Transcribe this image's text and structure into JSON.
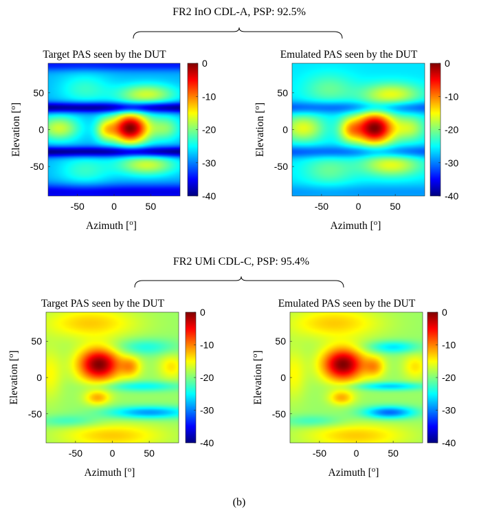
{
  "caption": "(b)",
  "chart_data": [
    {
      "type": "heatmap",
      "group_title": "FR2 InO CDL-A, PSP: 92.5%",
      "title": "Target PAS seen by the DUT",
      "xlabel": "Azimuth [",
      "ylabel": "Elevation [",
      "label_superscript": "o",
      "label_close": "]",
      "xlim": [
        -90,
        90
      ],
      "ylim": [
        -90,
        90
      ],
      "xticks": [
        "-50",
        "0",
        "50"
      ],
      "xtick_values": [
        -50,
        0,
        50
      ],
      "yticks": [
        "50",
        "0",
        "-50"
      ],
      "ytick_values": [
        50,
        0,
        -50
      ],
      "colorbar": {
        "range": [
          -40,
          0
        ],
        "ticks": [
          "0",
          "-10",
          "-20",
          "-30",
          "-40"
        ],
        "tick_values": [
          0,
          -10,
          -20,
          -30,
          -40
        ],
        "colormap": "jet"
      },
      "field": {
        "base": -28,
        "blobs": [
          {
            "az": 22,
            "el": 2,
            "saz": 18,
            "sel": 15,
            "amp": 28
          },
          {
            "az": -75,
            "el": 2,
            "saz": 20,
            "sel": 12,
            "amp": 11
          },
          {
            "az": -12,
            "el": 0,
            "saz": 10,
            "sel": 11,
            "amp": 10
          },
          {
            "az": 45,
            "el": 48,
            "saz": 28,
            "sel": 10,
            "amp": 11
          },
          {
            "az": 45,
            "el": -48,
            "saz": 28,
            "sel": 10,
            "amp": 11
          },
          {
            "az": 70,
            "el": 2,
            "saz": 15,
            "sel": 12,
            "amp": 8
          },
          {
            "az": -40,
            "el": 55,
            "saz": 25,
            "sel": 15,
            "amp": 5
          },
          {
            "az": -40,
            "el": -55,
            "saz": 25,
            "sel": 15,
            "amp": 5
          }
        ],
        "nulls": [
          {
            "el": 30,
            "w": 5,
            "depth": 12
          },
          {
            "el": -30,
            "w": 5,
            "depth": 12
          },
          {
            "el": -85,
            "w": 8,
            "depth": 8
          },
          {
            "el": 88,
            "w": 6,
            "depth": 6
          }
        ]
      }
    },
    {
      "type": "heatmap",
      "title": "Emulated PAS seen by the DUT",
      "xlabel": "Azimuth [",
      "ylabel": "Elevation [",
      "label_superscript": "o",
      "label_close": "]",
      "xlim": [
        -90,
        90
      ],
      "ylim": [
        -90,
        90
      ],
      "xticks": [
        "-50",
        "0",
        "50"
      ],
      "xtick_values": [
        -50,
        0,
        50
      ],
      "yticks": [
        "50",
        "0",
        "-50"
      ],
      "ytick_values": [
        50,
        0,
        -50
      ],
      "colorbar": {
        "range": [
          -40,
          0
        ],
        "ticks": [
          "0",
          "-10",
          "-20",
          "-30",
          "-40"
        ],
        "tick_values": [
          0,
          -10,
          -20,
          -30,
          -40
        ],
        "colormap": "jet"
      },
      "field": {
        "base": -26,
        "blobs": [
          {
            "az": 22,
            "el": 2,
            "saz": 19,
            "sel": 16,
            "amp": 26
          },
          {
            "az": -75,
            "el": 2,
            "saz": 20,
            "sel": 13,
            "amp": 10
          },
          {
            "az": -12,
            "el": 0,
            "saz": 11,
            "sel": 12,
            "amp": 10
          },
          {
            "az": 45,
            "el": 48,
            "saz": 28,
            "sel": 11,
            "amp": 10
          },
          {
            "az": 45,
            "el": -48,
            "saz": 28,
            "sel": 11,
            "amp": 10
          },
          {
            "az": 70,
            "el": 2,
            "saz": 15,
            "sel": 12,
            "amp": 8
          },
          {
            "az": -40,
            "el": 55,
            "saz": 25,
            "sel": 15,
            "amp": 5
          },
          {
            "az": -40,
            "el": -55,
            "saz": 25,
            "sel": 15,
            "amp": 5
          }
        ],
        "nulls": [
          {
            "el": 30,
            "w": 6,
            "depth": 6
          },
          {
            "el": -30,
            "w": 6,
            "depth": 6
          },
          {
            "el": -85,
            "w": 8,
            "depth": 3
          }
        ]
      }
    },
    {
      "type": "heatmap",
      "group_title": "FR2 UMi CDL-C, PSP: 95.4%",
      "title": "Target PAS seen by the DUT",
      "xlabel": "Azimuth [",
      "ylabel": "Elevation [",
      "label_superscript": "o",
      "label_close": "]",
      "xlim": [
        -90,
        90
      ],
      "ylim": [
        -90,
        90
      ],
      "xticks": [
        "-50",
        "0",
        "50"
      ],
      "xtick_values": [
        -50,
        0,
        50
      ],
      "yticks": [
        "50",
        "0",
        "-50"
      ],
      "ytick_values": [
        50,
        0,
        -50
      ],
      "colorbar": {
        "range": [
          -40,
          0
        ],
        "ticks": [
          "0",
          "-10",
          "-20",
          "-30",
          "-40"
        ],
        "tick_values": [
          0,
          -10,
          -20,
          -30,
          -40
        ],
        "colormap": "jet"
      },
      "field": {
        "base": -19,
        "blobs": [
          {
            "az": -18,
            "el": 18,
            "saz": 20,
            "sel": 16,
            "amp": 19
          },
          {
            "az": -20,
            "el": -28,
            "saz": 12,
            "sel": 7,
            "amp": 7
          },
          {
            "az": 25,
            "el": 15,
            "saz": 10,
            "sel": 10,
            "amp": 7
          },
          {
            "az": -30,
            "el": 75,
            "saz": 45,
            "sel": 15,
            "amp": 6
          },
          {
            "az": 0,
            "el": -80,
            "saz": 50,
            "sel": 12,
            "amp": 6
          },
          {
            "az": 80,
            "el": 15,
            "saz": 12,
            "sel": 12,
            "amp": 5
          },
          {
            "az": -85,
            "el": 5,
            "saz": 12,
            "sel": 25,
            "amp": 4
          }
        ],
        "nulls": [
          {
            "el": -48,
            "w": 6,
            "depth": 10,
            "az0": 50,
            "saz": 40
          },
          {
            "el": -12,
            "w": 5,
            "depth": 6,
            "az0": 40,
            "saz": 40
          },
          {
            "el": 42,
            "w": 8,
            "depth": 5,
            "az0": 45,
            "saz": 30
          },
          {
            "el": -60,
            "w": 6,
            "depth": 4,
            "az0": -60,
            "saz": 30
          }
        ]
      }
    },
    {
      "type": "heatmap",
      "title": "Emulated PAS seen by the DUT",
      "xlabel": "Azimuth [",
      "ylabel": "Elevation [",
      "label_superscript": "o",
      "label_close": "]",
      "xlim": [
        -90,
        90
      ],
      "ylim": [
        -90,
        90
      ],
      "xticks": [
        "-50",
        "0",
        "50"
      ],
      "xtick_values": [
        -50,
        0,
        50
      ],
      "yticks": [
        "50",
        "0",
        "-50"
      ],
      "ytick_values": [
        50,
        0,
        -50
      ],
      "colorbar": {
        "range": [
          -40,
          0
        ],
        "ticks": [
          "0",
          "-10",
          "-20",
          "-30",
          "-40"
        ],
        "tick_values": [
          0,
          -10,
          -20,
          -30,
          -40
        ],
        "colormap": "jet"
      },
      "field": {
        "base": -19,
        "blobs": [
          {
            "az": -18,
            "el": 18,
            "saz": 20,
            "sel": 16,
            "amp": 19
          },
          {
            "az": -20,
            "el": -28,
            "saz": 12,
            "sel": 7,
            "amp": 7
          },
          {
            "az": 25,
            "el": 15,
            "saz": 10,
            "sel": 10,
            "amp": 7
          },
          {
            "az": -30,
            "el": 75,
            "saz": 45,
            "sel": 15,
            "amp": 6
          },
          {
            "az": 0,
            "el": -80,
            "saz": 50,
            "sel": 12,
            "amp": 6
          },
          {
            "az": 80,
            "el": 15,
            "saz": 12,
            "sel": 12,
            "amp": 5
          },
          {
            "az": -85,
            "el": 5,
            "saz": 12,
            "sel": 25,
            "amp": 4
          }
        ],
        "nulls": [
          {
            "el": -48,
            "w": 6,
            "depth": 12,
            "az0": 45,
            "saz": 25
          },
          {
            "el": -12,
            "w": 4,
            "depth": 8,
            "az0": 45,
            "saz": 35
          },
          {
            "el": 42,
            "w": 6,
            "depth": 7,
            "az0": 50,
            "saz": 25
          },
          {
            "el": -60,
            "w": 6,
            "depth": 4,
            "az0": -60,
            "saz": 30
          }
        ]
      }
    }
  ]
}
